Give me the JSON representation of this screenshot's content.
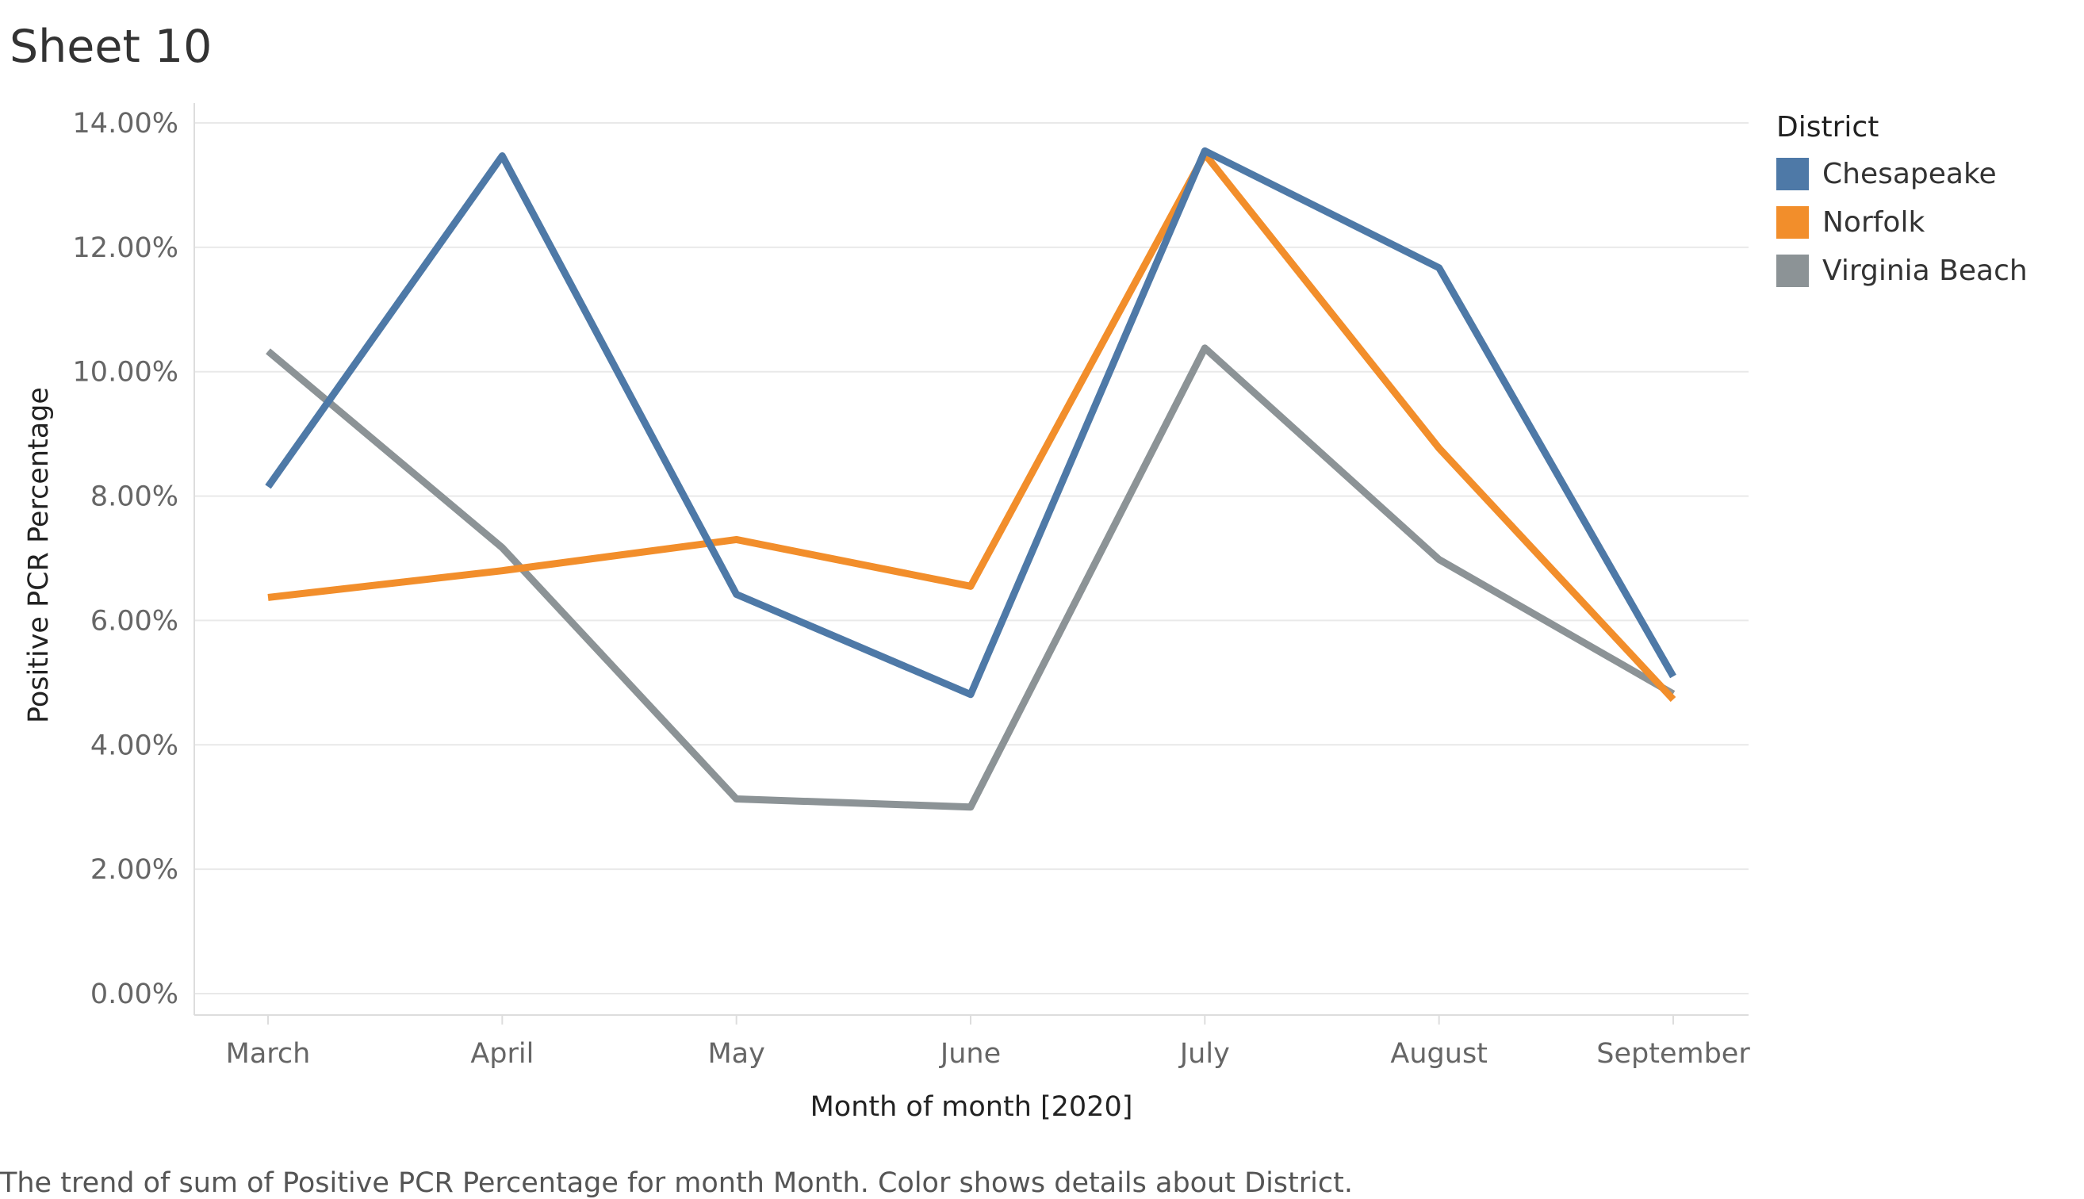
{
  "title": "Sheet 10",
  "caption": "The trend of sum of Positive PCR Percentage for month Month.  Color shows details about District.",
  "colors": {
    "gridline": "#e9e9e9",
    "axis": "#dddddd"
  },
  "chart_data": {
    "type": "line",
    "title": "Sheet 10",
    "xlabel": "Month of month [2020]",
    "ylabel": "Positive PCR Percentage",
    "categories": [
      "March",
      "April",
      "May",
      "June",
      "July",
      "August",
      "September"
    ],
    "ylim": [
      0,
      14
    ],
    "yticks": [
      0,
      2,
      4,
      6,
      8,
      10,
      12,
      14
    ],
    "ytick_labels": [
      "0.00%",
      "2.00%",
      "4.00%",
      "6.00%",
      "8.00%",
      "10.00%",
      "12.00%",
      "14.00%"
    ],
    "grid": true,
    "legend": {
      "title": "District",
      "position": "right"
    },
    "series": [
      {
        "name": "Chesapeake",
        "color": "#4e79a7",
        "values": [
          8.15,
          13.47,
          6.42,
          4.81,
          13.55,
          11.67,
          5.1
        ]
      },
      {
        "name": "Norfolk",
        "color": "#f28e2b",
        "values": [
          6.37,
          6.8,
          7.3,
          6.55,
          13.5,
          8.77,
          4.73
        ]
      },
      {
        "name": "Virginia Beach",
        "color": "#8c9396",
        "values": [
          10.33,
          7.17,
          3.13,
          3.0,
          10.38,
          6.98,
          4.82
        ]
      }
    ]
  }
}
